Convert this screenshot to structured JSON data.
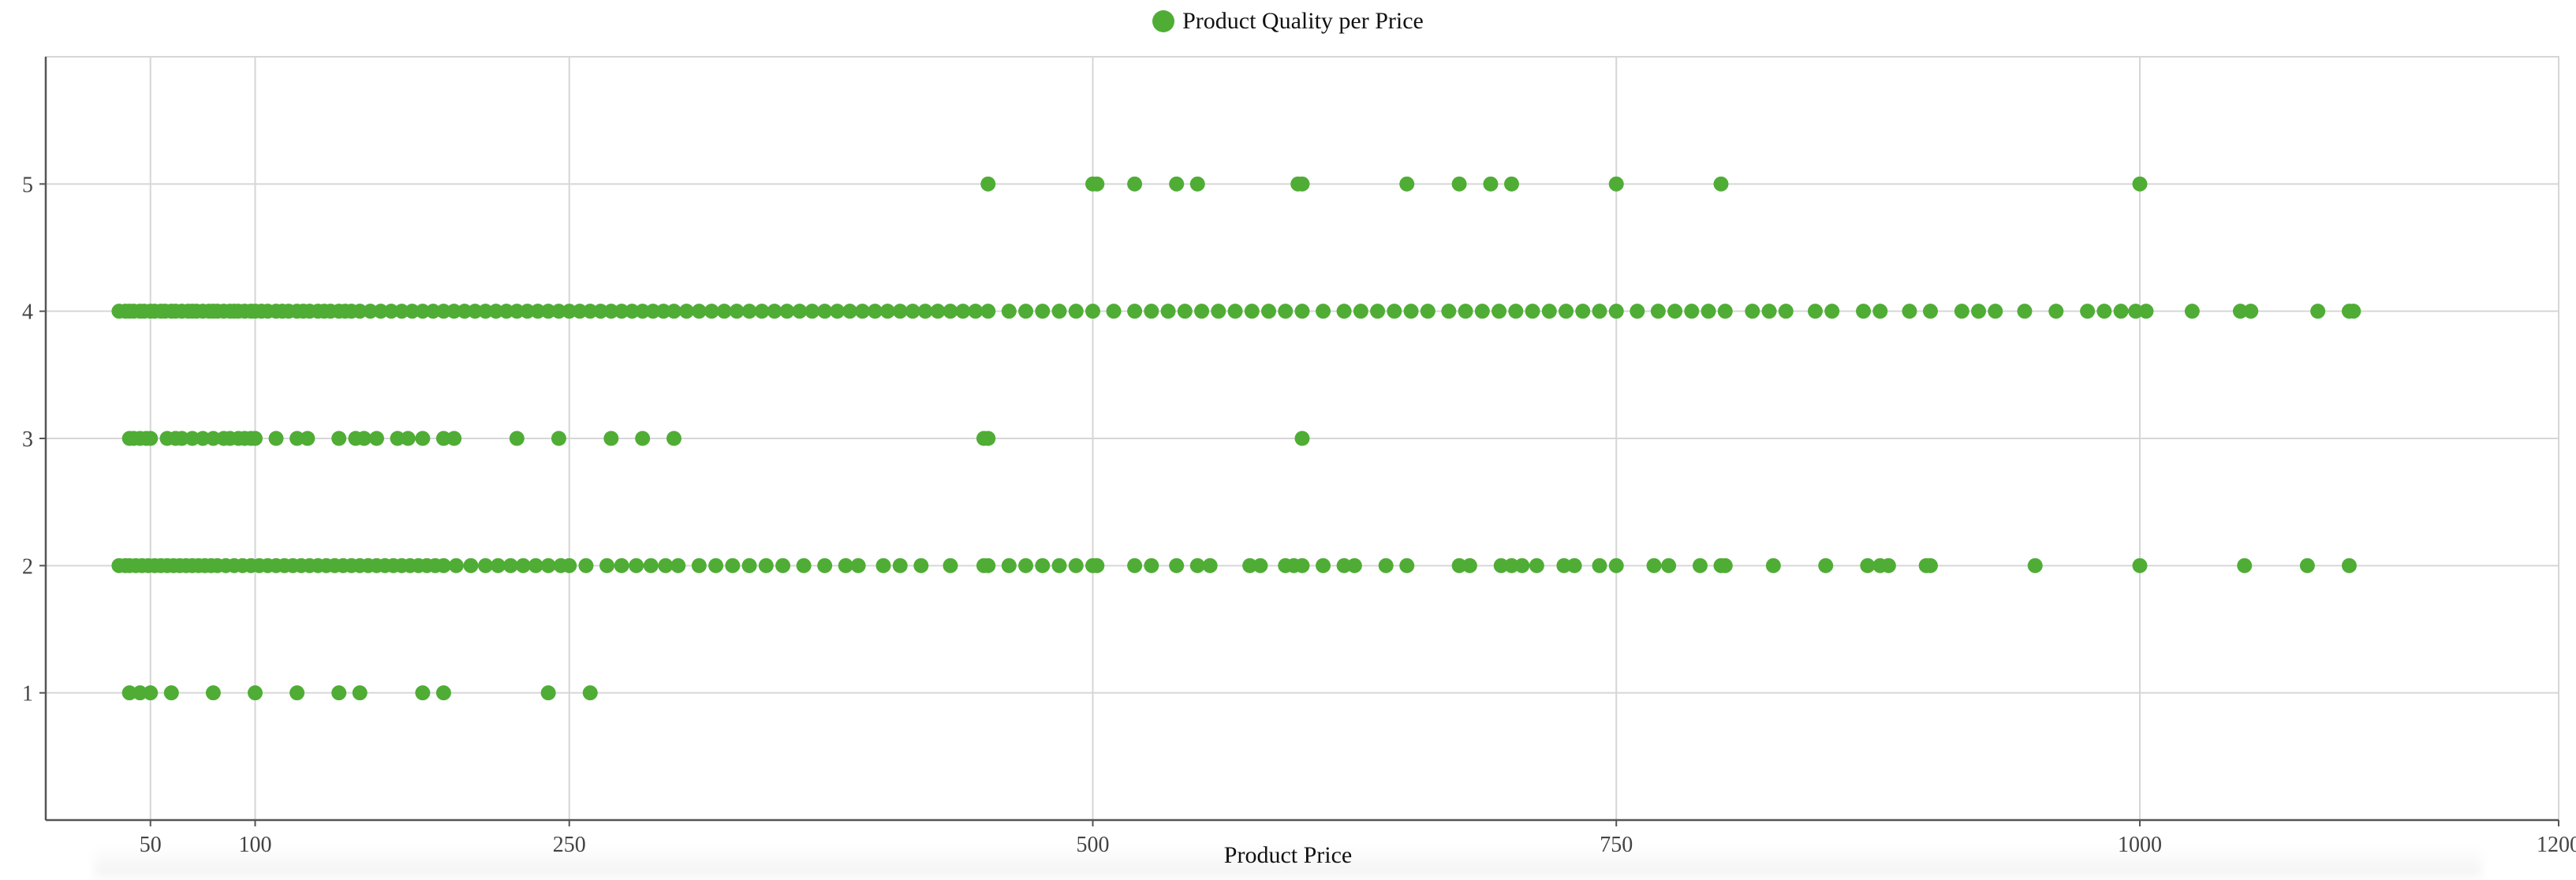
{
  "chart_data": {
    "type": "scatter",
    "title": "",
    "legend": [
      {
        "name": "Product Quality per Price",
        "color": "#4fad35"
      }
    ],
    "legend_position": "top-center",
    "xlabel": "Product Price",
    "ylabel": "",
    "xlim": [
      0,
      1200
    ],
    "ylim": [
      0,
      6
    ],
    "x_ticks": [
      50,
      100,
      250,
      500,
      750,
      1000,
      1200
    ],
    "y_ticks": [
      1,
      2,
      3,
      4,
      5
    ],
    "grid": true,
    "series": [
      {
        "name": "Product Quality per Price",
        "color": "#4fad35",
        "points": [
          {
            "y": 5,
            "x": [
              450,
              500,
              502,
              520,
              540,
              550,
              598,
              600,
              650,
              675,
              690,
              700,
              750,
              800,
              1000
            ]
          },
          {
            "y": 4,
            "x": [
              35,
              38,
              40,
              42,
              45,
              47,
              50,
              52,
              55,
              57,
              60,
              62,
              65,
              68,
              70,
              72,
              75,
              78,
              80,
              82,
              85,
              88,
              90,
              92,
              95,
              98,
              100,
              103,
              106,
              110,
              113,
              116,
              120,
              123,
              126,
              130,
              133,
              136,
              140,
              143,
              146,
              150,
              155,
              160,
              165,
              170,
              175,
              180,
              185,
              190,
              195,
              200,
              205,
              210,
              215,
              220,
              225,
              230,
              235,
              240,
              245,
              250,
              255,
              260,
              265,
              270,
              275,
              280,
              285,
              290,
              295,
              300,
              306,
              312,
              318,
              324,
              330,
              336,
              342,
              348,
              354,
              360,
              366,
              372,
              378,
              384,
              390,
              396,
              402,
              408,
              414,
              420,
              426,
              432,
              438,
              444,
              450,
              460,
              468,
              476,
              484,
              492,
              500,
              510,
              520,
              528,
              536,
              544,
              552,
              560,
              568,
              576,
              584,
              592,
              600,
              610,
              620,
              628,
              636,
              644,
              652,
              660,
              670,
              678,
              686,
              694,
              702,
              710,
              718,
              726,
              734,
              742,
              750,
              760,
              770,
              778,
              786,
              794,
              802,
              815,
              823,
              831,
              845,
              853,
              868,
              876,
              890,
              900,
              915,
              923,
              931,
              945,
              960,
              975,
              983,
              991,
              998,
              1003,
              1025,
              1048,
              1053,
              1085,
              1100,
              1102
            ]
          },
          {
            "y": 3,
            "x": [
              40,
              42,
              45,
              48,
              50,
              58,
              62,
              65,
              70,
              75,
              80,
              85,
              88,
              92,
              95,
              98,
              100,
              110,
              120,
              125,
              140,
              148,
              152,
              158,
              168,
              173,
              180,
              190,
              195,
              225,
              245,
              270,
              285,
              300,
              448,
              450,
              600
            ]
          },
          {
            "y": 2,
            "x": [
              35,
              38,
              40,
              43,
              46,
              49,
              52,
              55,
              58,
              61,
              64,
              67,
              70,
              73,
              76,
              79,
              82,
              86,
              90,
              94,
              98,
              102,
              106,
              110,
              114,
              118,
              122,
              126,
              130,
              134,
              138,
              142,
              146,
              150,
              154,
              158,
              162,
              166,
              170,
              174,
              178,
              182,
              186,
              190,
              196,
              203,
              210,
              216,
              222,
              228,
              234,
              240,
              246,
              250,
              258,
              268,
              275,
              282,
              289,
              296,
              302,
              312,
              320,
              328,
              336,
              344,
              352,
              362,
              372,
              382,
              388,
              400,
              408,
              418,
              432,
              448,
              450,
              460,
              468,
              476,
              484,
              492,
              500,
              502,
              520,
              528,
              540,
              550,
              556,
              575,
              580,
              592,
              596,
              600,
              610,
              620,
              625,
              640,
              650,
              675,
              680,
              695,
              700,
              705,
              712,
              725,
              730,
              742,
              750,
              768,
              775,
              790,
              800,
              802,
              825,
              850,
              870,
              876,
              880,
              898,
              900,
              950,
              1000,
              1050,
              1080,
              1100
            ]
          },
          {
            "y": 1,
            "x": [
              40,
              45,
              50,
              60,
              80,
              100,
              120,
              140,
              150,
              180,
              190,
              240,
              260
            ]
          }
        ]
      }
    ]
  }
}
